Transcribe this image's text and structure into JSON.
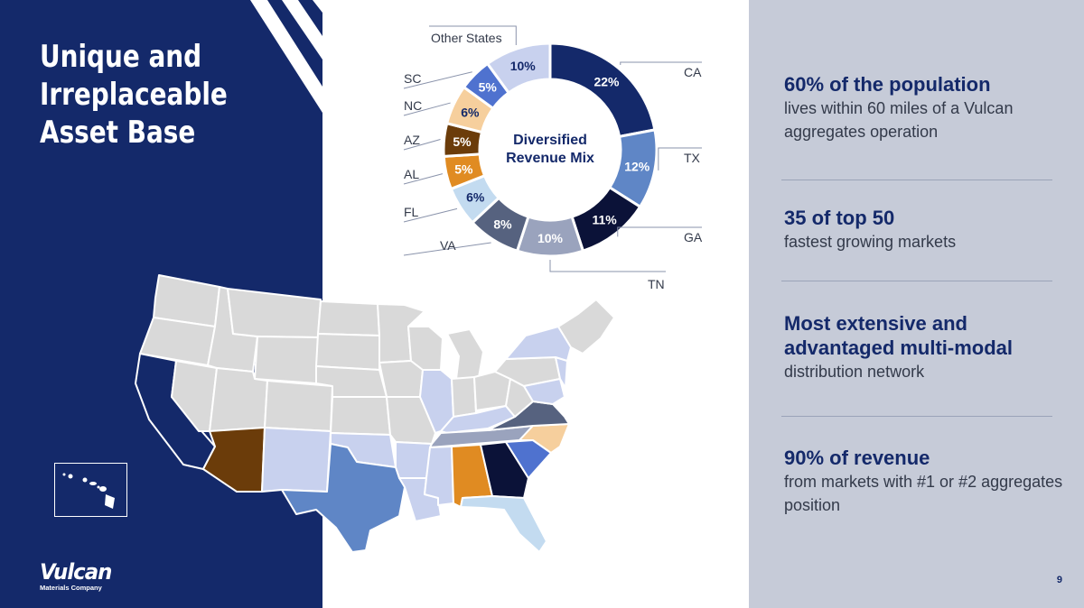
{
  "title_lines": [
    "Unique and",
    "Irreplaceable",
    "Asset Base"
  ],
  "logo": {
    "word": "Vulcan",
    "sub": "Materials Company"
  },
  "chart_data": {
    "type": "pie",
    "center_label": [
      "Diversified",
      "Revenue Mix"
    ],
    "categories": [
      "CA",
      "TX",
      "GA",
      "TN",
      "VA",
      "FL",
      "AL",
      "AZ",
      "NC",
      "SC",
      "Other States"
    ],
    "values": [
      22,
      12,
      11,
      10,
      8,
      6,
      5,
      5,
      6,
      5,
      10
    ],
    "value_labels": [
      "22%",
      "12%",
      "11%",
      "10%",
      "8%",
      "6%",
      "5%",
      "5%",
      "6%",
      "5%",
      "10%"
    ],
    "colors": [
      "#14296a",
      "#5f86c6",
      "#0b1238",
      "#9aa3bd",
      "#56627f",
      "#c3dbf0",
      "#e08b22",
      "#6b3c0a",
      "#f6cf9d",
      "#4f72cf",
      "#c8d1ee"
    ]
  },
  "map": {
    "highlight_colors": {
      "CA": "#14296a",
      "TX": "#5f86c6",
      "GA": "#0b1238",
      "TN": "#9aa3bd",
      "VA": "#56627f",
      "FL": "#c3dbf0",
      "AL": "#e08b22",
      "AZ": "#6b3c0a",
      "NC": "#f6cf9d",
      "SC": "#4f72cf",
      "other": "#c8d1ee",
      "default": "#d9d9d9"
    }
  },
  "stats": [
    {
      "headline": "60% of the population",
      "body": "lives within 60 miles of a Vulcan aggregates operation"
    },
    {
      "headline": "35 of top 50",
      "body": "fastest growing markets"
    },
    {
      "headline": "Most extensive and advantaged multi-modal",
      "body": "distribution network"
    },
    {
      "headline": "90% of revenue",
      "body": "from markets with #1 or #2 aggregates position"
    }
  ],
  "page_number": "9"
}
